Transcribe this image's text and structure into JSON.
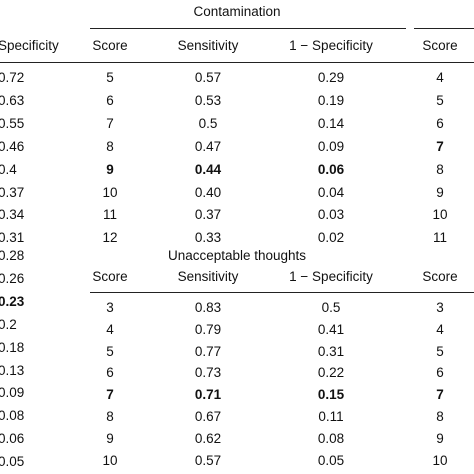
{
  "top_group": {
    "title": "Contamination",
    "headers": [
      "Specificity",
      "Score",
      "Sensitivity",
      "1 − Specificity",
      "Score"
    ],
    "left_values": [
      "0.72",
      "0.63",
      "0.55",
      "0.46",
      "0.4",
      "0.37",
      "0.34",
      "0.31"
    ],
    "rows": [
      [
        "5",
        "0.57",
        "0.29",
        "4"
      ],
      [
        "6",
        "0.53",
        "0.19",
        "5"
      ],
      [
        "7",
        "0.5",
        "0.14",
        "6"
      ],
      [
        "8",
        "0.47",
        "0.09",
        "7"
      ],
      [
        "9",
        "0.44",
        "0.06",
        "8"
      ],
      [
        "10",
        "0.40",
        "0.04",
        "9"
      ],
      [
        "11",
        "0.37",
        "0.03",
        "10"
      ],
      [
        "12",
        "0.33",
        "0.02",
        "11"
      ]
    ],
    "bold_mid_row": 4,
    "bold_right_row": 3
  },
  "bottom_group": {
    "title": "Unacceptable thoughts",
    "headers": [
      "Score",
      "Sensitivity",
      "1 − Specificity",
      "Score"
    ],
    "left_values": [
      "0.28",
      "0.26",
      "0.23",
      "0.2",
      "0.18",
      "0.13",
      "0.09",
      "0.08",
      "0.06",
      "0.05"
    ],
    "rows": [
      [
        "3",
        "0.83",
        "0.5",
        "3"
      ],
      [
        "4",
        "0.79",
        "0.41",
        "4"
      ],
      [
        "5",
        "0.77",
        "0.31",
        "5"
      ],
      [
        "6",
        "0.73",
        "0.22",
        "6"
      ],
      [
        "7",
        "0.71",
        "0.15",
        "7"
      ],
      [
        "8",
        "0.67",
        "0.11",
        "8"
      ],
      [
        "9",
        "0.62",
        "0.08",
        "9"
      ],
      [
        "10",
        "0.57",
        "0.05",
        "10"
      ]
    ],
    "bold_left_index": 2,
    "bold_row": 4
  }
}
